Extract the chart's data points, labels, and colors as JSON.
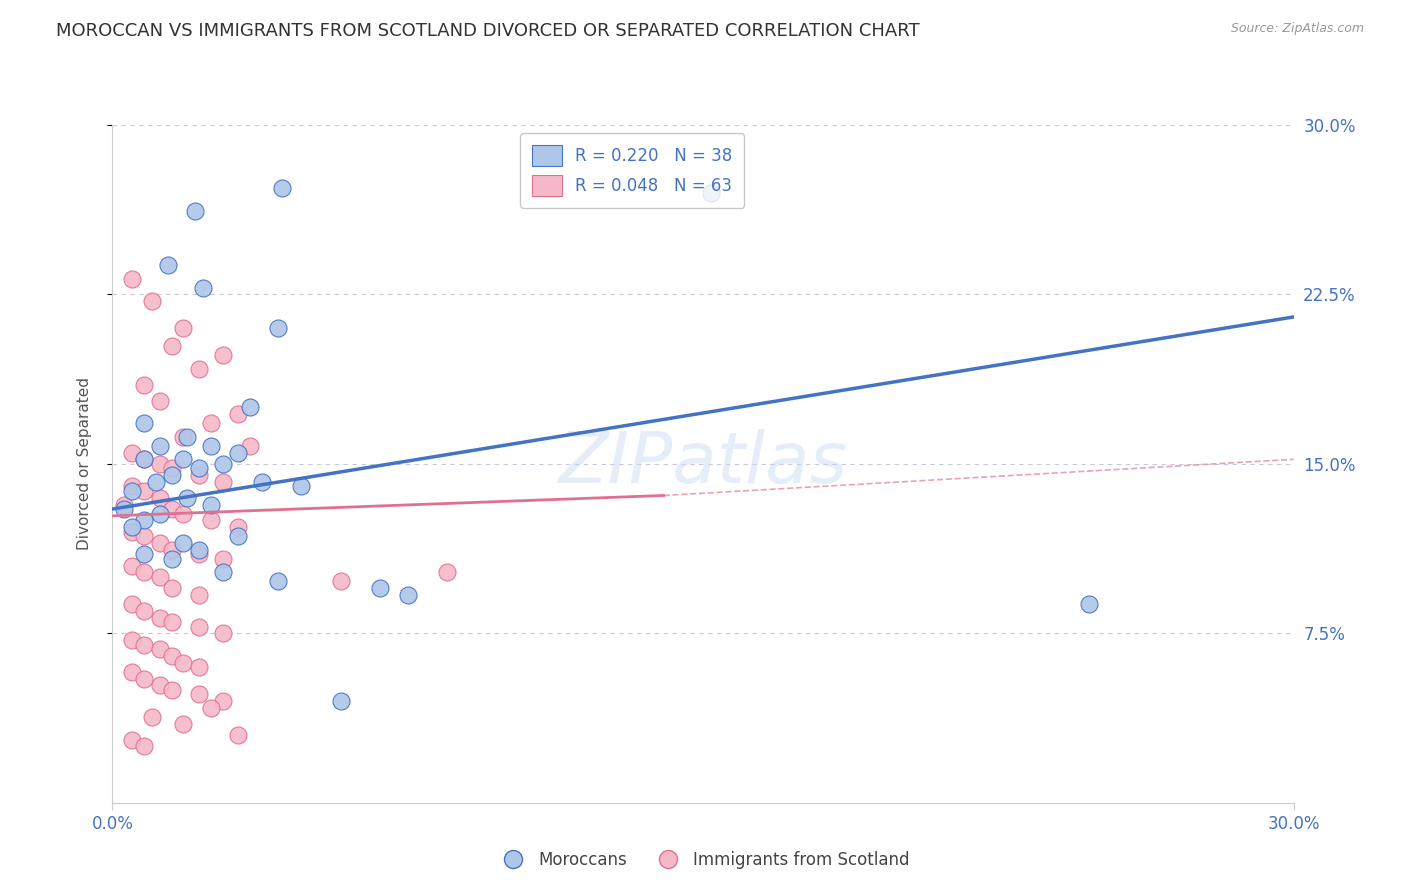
{
  "title": "MOROCCAN VS IMMIGRANTS FROM SCOTLAND DIVORCED OR SEPARATED CORRELATION CHART",
  "source": "Source: ZipAtlas.com",
  "ylabel": "Divorced or Separated",
  "x_min": 0.0,
  "x_max": 0.3,
  "y_min": 0.0,
  "y_max": 0.3,
  "y_ticks": [
    0.075,
    0.15,
    0.225,
    0.3
  ],
  "y_tick_labels": [
    "7.5%",
    "15.0%",
    "22.5%",
    "30.0%"
  ],
  "x_ticks": [
    0.0,
    0.3
  ],
  "x_tick_labels": [
    "0.0%",
    "30.0%"
  ],
  "legend1_labels": [
    "R = 0.220   N = 38",
    "R = 0.048   N = 63"
  ],
  "legend2_labels": [
    "Moroccans",
    "Immigrants from Scotland"
  ],
  "blue_scatter": [
    [
      0.021,
      0.262
    ],
    [
      0.014,
      0.238
    ],
    [
      0.043,
      0.272
    ],
    [
      0.152,
      0.27
    ],
    [
      0.023,
      0.228
    ],
    [
      0.042,
      0.21
    ],
    [
      0.008,
      0.168
    ],
    [
      0.035,
      0.175
    ],
    [
      0.019,
      0.162
    ],
    [
      0.012,
      0.158
    ],
    [
      0.025,
      0.158
    ],
    [
      0.032,
      0.155
    ],
    [
      0.018,
      0.152
    ],
    [
      0.008,
      0.152
    ],
    [
      0.028,
      0.15
    ],
    [
      0.022,
      0.148
    ],
    [
      0.015,
      0.145
    ],
    [
      0.011,
      0.142
    ],
    [
      0.038,
      0.142
    ],
    [
      0.048,
      0.14
    ],
    [
      0.005,
      0.138
    ],
    [
      0.019,
      0.135
    ],
    [
      0.025,
      0.132
    ],
    [
      0.003,
      0.13
    ],
    [
      0.012,
      0.128
    ],
    [
      0.008,
      0.125
    ],
    [
      0.005,
      0.122
    ],
    [
      0.032,
      0.118
    ],
    [
      0.018,
      0.115
    ],
    [
      0.022,
      0.112
    ],
    [
      0.008,
      0.11
    ],
    [
      0.015,
      0.108
    ],
    [
      0.028,
      0.102
    ],
    [
      0.042,
      0.098
    ],
    [
      0.068,
      0.095
    ],
    [
      0.075,
      0.092
    ],
    [
      0.058,
      0.045
    ],
    [
      0.248,
      0.088
    ]
  ],
  "pink_scatter": [
    [
      0.005,
      0.232
    ],
    [
      0.01,
      0.222
    ],
    [
      0.018,
      0.21
    ],
    [
      0.015,
      0.202
    ],
    [
      0.028,
      0.198
    ],
    [
      0.022,
      0.192
    ],
    [
      0.008,
      0.185
    ],
    [
      0.012,
      0.178
    ],
    [
      0.032,
      0.172
    ],
    [
      0.025,
      0.168
    ],
    [
      0.018,
      0.162
    ],
    [
      0.035,
      0.158
    ],
    [
      0.005,
      0.155
    ],
    [
      0.008,
      0.152
    ],
    [
      0.012,
      0.15
    ],
    [
      0.015,
      0.148
    ],
    [
      0.022,
      0.145
    ],
    [
      0.028,
      0.142
    ],
    [
      0.005,
      0.14
    ],
    [
      0.008,
      0.138
    ],
    [
      0.012,
      0.135
    ],
    [
      0.003,
      0.132
    ],
    [
      0.015,
      0.13
    ],
    [
      0.018,
      0.128
    ],
    [
      0.025,
      0.125
    ],
    [
      0.032,
      0.122
    ],
    [
      0.005,
      0.12
    ],
    [
      0.008,
      0.118
    ],
    [
      0.012,
      0.115
    ],
    [
      0.015,
      0.112
    ],
    [
      0.022,
      0.11
    ],
    [
      0.028,
      0.108
    ],
    [
      0.005,
      0.105
    ],
    [
      0.008,
      0.102
    ],
    [
      0.012,
      0.1
    ],
    [
      0.058,
      0.098
    ],
    [
      0.015,
      0.095
    ],
    [
      0.022,
      0.092
    ],
    [
      0.005,
      0.088
    ],
    [
      0.008,
      0.085
    ],
    [
      0.012,
      0.082
    ],
    [
      0.015,
      0.08
    ],
    [
      0.022,
      0.078
    ],
    [
      0.028,
      0.075
    ],
    [
      0.005,
      0.072
    ],
    [
      0.008,
      0.07
    ],
    [
      0.012,
      0.068
    ],
    [
      0.015,
      0.065
    ],
    [
      0.085,
      0.102
    ],
    [
      0.018,
      0.062
    ],
    [
      0.022,
      0.06
    ],
    [
      0.005,
      0.058
    ],
    [
      0.008,
      0.055
    ],
    [
      0.012,
      0.052
    ],
    [
      0.015,
      0.05
    ],
    [
      0.022,
      0.048
    ],
    [
      0.028,
      0.045
    ],
    [
      0.025,
      0.042
    ],
    [
      0.01,
      0.038
    ],
    [
      0.018,
      0.035
    ],
    [
      0.032,
      0.03
    ],
    [
      0.005,
      0.028
    ],
    [
      0.008,
      0.025
    ]
  ],
  "blue_line": [
    [
      0.0,
      0.13
    ],
    [
      0.3,
      0.215
    ]
  ],
  "pink_line_solid": [
    [
      0.0,
      0.127
    ],
    [
      0.14,
      0.136
    ]
  ],
  "pink_line_dashed": [
    [
      0.14,
      0.136
    ],
    [
      0.3,
      0.152
    ]
  ],
  "blue_color": "#4472c4",
  "pink_color": "#e07090",
  "blue_fill": "#aec6e8",
  "pink_fill": "#f4b8c8",
  "watermark": "ZIPatlas",
  "background_color": "#ffffff",
  "grid_color": "#c8c8e0",
  "axis_label_color": "#4472c4",
  "title_fontsize": 13,
  "tick_fontsize": 12
}
